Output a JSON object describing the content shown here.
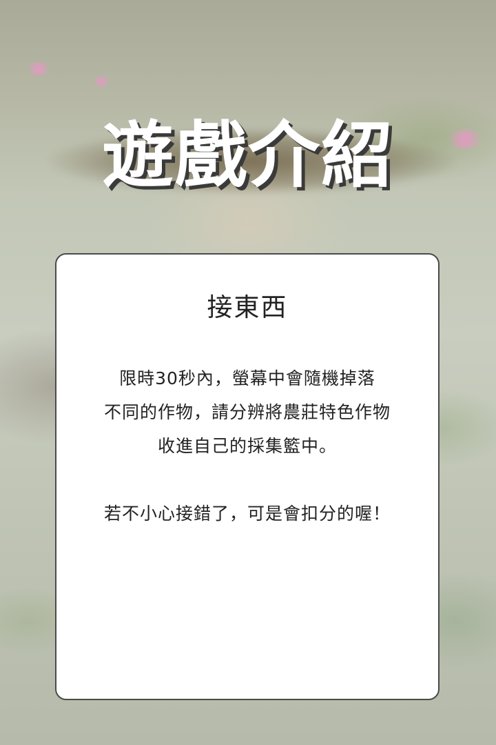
{
  "page": {
    "title": "遊戲介紹"
  },
  "card": {
    "heading": "接東西",
    "description_lines": [
      "限時30秒內，螢幕中會隨機掉落",
      "不同的作物，請分辨將農莊特色作物",
      "收進自己的採集籃中。"
    ],
    "warning": "若不小心接錯了，可是會扣分的喔！"
  },
  "colors": {
    "title_text": "#ffffff",
    "title_shadow": "#3a3a3a",
    "card_background": "#ffffff",
    "card_border": "#4a4a4a",
    "body_text": "#222222"
  }
}
